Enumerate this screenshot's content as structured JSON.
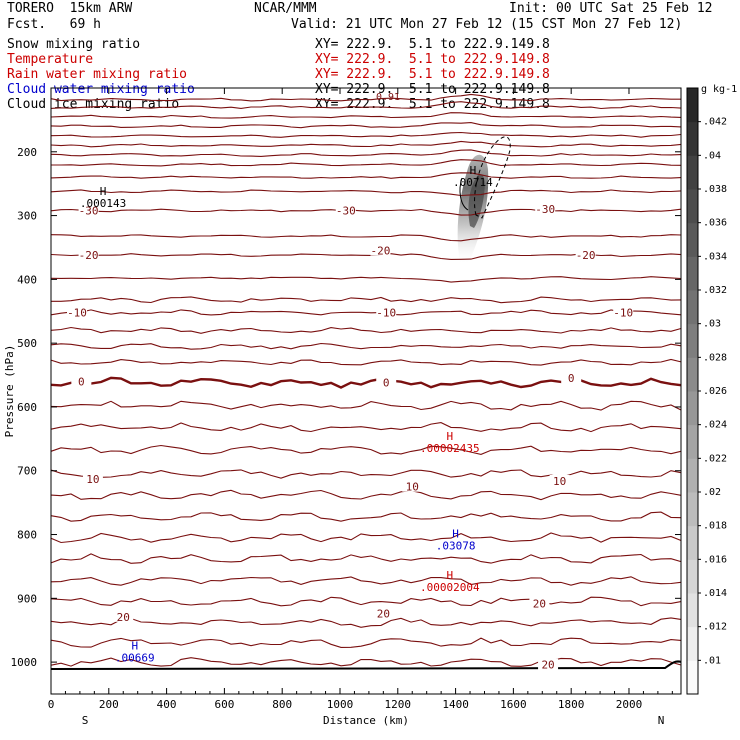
{
  "header": {
    "model": "TORERO  15km ARW",
    "fcst": "Fcst.   69 h",
    "center": "NCAR/MMM",
    "init": "Init: 00 UTC Sat 25 Feb 12",
    "valid": "Valid: 21 UTC Mon 27 Feb 12 (15 CST Mon 27 Feb 12)"
  },
  "fields": [
    {
      "name": "Snow mixing ratio",
      "xy": "XY= 222.9.  5.1 to 222.9.149.8",
      "color": "#000000",
      "xy_color": "#000000"
    },
    {
      "name": "Temperature",
      "xy": "XY= 222.9.  5.1 to 222.9.149.8",
      "color": "#cc0000",
      "xy_color": "#cc0000"
    },
    {
      "name": "Rain water mixing ratio",
      "xy": "XY= 222.9.  5.1 to 222.9.149.8",
      "color": "#cc0000",
      "xy_color": "#cc0000"
    },
    {
      "name": "Cloud water mixing ratio",
      "xy": "XY= 222.9.  5.1 to 222.9.149.8",
      "color": "#0000cc",
      "xy_color": "#000000"
    },
    {
      "name": "Cloud ice mixing ratio",
      "xy": "XY= 222.9.  5.1 to 222.9.149.8",
      "color": "#000000",
      "xy_color": "#000000"
    }
  ],
  "chart_data": {
    "type": "cross-section",
    "xlabel": "Distance (km)",
    "ylabel": "Pressure (hPa)",
    "xlim": [
      0,
      2180
    ],
    "ylim": [
      1050,
      100
    ],
    "x_ticks": [
      0,
      200,
      400,
      600,
      800,
      1000,
      1200,
      1400,
      1600,
      1800,
      2000
    ],
    "y_ticks": [
      200,
      300,
      400,
      500,
      600,
      700,
      800,
      900,
      1000
    ],
    "x_endpoints": {
      "left": "S",
      "right": "N"
    },
    "colorbar": {
      "units": "g kg-1",
      "labels": [
        ".01",
        ".012",
        ".014",
        ".016",
        ".018",
        ".02",
        ".022",
        ".024",
        ".026",
        ".028",
        ".03",
        ".032",
        ".034",
        ".036",
        ".038",
        ".04",
        ".042"
      ]
    },
    "isotherm_labels": [
      {
        "text": "-30",
        "x": 130,
        "p": 292
      },
      {
        "text": "-30",
        "x": 1020,
        "p": 292
      },
      {
        "text": "-30",
        "x": 1710,
        "p": 290
      },
      {
        "text": "-20",
        "x": 130,
        "p": 362
      },
      {
        "text": "-20",
        "x": 1140,
        "p": 355
      },
      {
        "text": "-20",
        "x": 1850,
        "p": 362
      },
      {
        "text": "-10",
        "x": 90,
        "p": 452
      },
      {
        "text": "-10",
        "x": 1160,
        "p": 452
      },
      {
        "text": "-10",
        "x": 1980,
        "p": 452
      },
      {
        "text": "0",
        "x": 105,
        "p": 560
      },
      {
        "text": "0",
        "x": 1160,
        "p": 562
      },
      {
        "text": "0",
        "x": 1800,
        "p": 555
      },
      {
        "text": "10",
        "x": 145,
        "p": 713
      },
      {
        "text": "10",
        "x": 1250,
        "p": 725
      },
      {
        "text": "10",
        "x": 1760,
        "p": 716
      },
      {
        "text": "20",
        "x": 250,
        "p": 929
      },
      {
        "text": "20",
        "x": 1150,
        "p": 924
      },
      {
        "text": "20",
        "x": 1690,
        "p": 908
      },
      {
        "text": "20",
        "x": 1720,
        "p": 1004
      }
    ],
    "maxima": [
      {
        "text": "H",
        "value": ".000143",
        "x": 180,
        "p": 268,
        "color": "#000000"
      },
      {
        "text": "H",
        "value": ".00714",
        "x": 1460,
        "p": 235,
        "color": "#000000"
      },
      {
        "text": "H",
        "value": ".00002435",
        "x": 1380,
        "p": 652,
        "color": "#cc0000"
      },
      {
        "text": "H",
        "value": ".03078",
        "x": 1400,
        "p": 805,
        "color": "#0000cc"
      },
      {
        "text": "H",
        "value": ".00002004",
        "x": 1380,
        "p": 870,
        "color": "#cc0000"
      },
      {
        "text": "H",
        "value": ".00669",
        "x": 290,
        "p": 980,
        "color": "#0000cc"
      }
    ],
    "partial_labels": [
      "0.91"
    ]
  }
}
